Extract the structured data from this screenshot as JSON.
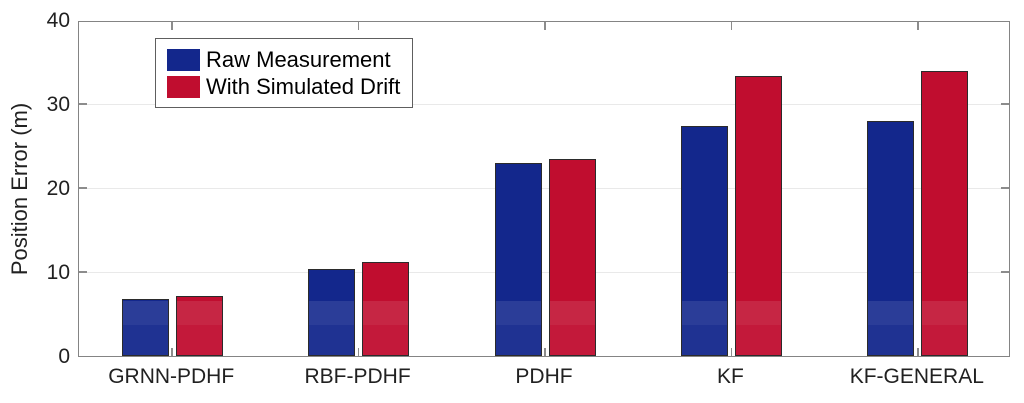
{
  "chart_data": {
    "type": "bar",
    "title": "",
    "categories": [
      "GRNN-PDHF",
      "RBF-PDHF",
      "PDHF",
      "KF",
      "KF-GENERAL"
    ],
    "series": [
      {
        "name": "Raw Measurement",
        "color": "#13278C",
        "values": [
          6.8,
          10.3,
          23.0,
          27.4,
          28.0
        ]
      },
      {
        "name": "With Simulated Drift",
        "color": "#C00D2F",
        "values": [
          7.1,
          11.2,
          23.4,
          33.3,
          33.9
        ]
      }
    ],
    "xlabel": "",
    "ylabel": "Position Error (m)",
    "ylim": [
      0,
      40
    ],
    "yticks": [
      0,
      10,
      20,
      30,
      40
    ],
    "grid": "horizontal-light",
    "legend_position": "top-left-inside",
    "colors": {
      "bar_edge": "#2B2B2B",
      "axis_box": "#848484",
      "gridline": "#E9E9E9",
      "tick_text": "#212121",
      "background": "#FFFFFF"
    }
  }
}
